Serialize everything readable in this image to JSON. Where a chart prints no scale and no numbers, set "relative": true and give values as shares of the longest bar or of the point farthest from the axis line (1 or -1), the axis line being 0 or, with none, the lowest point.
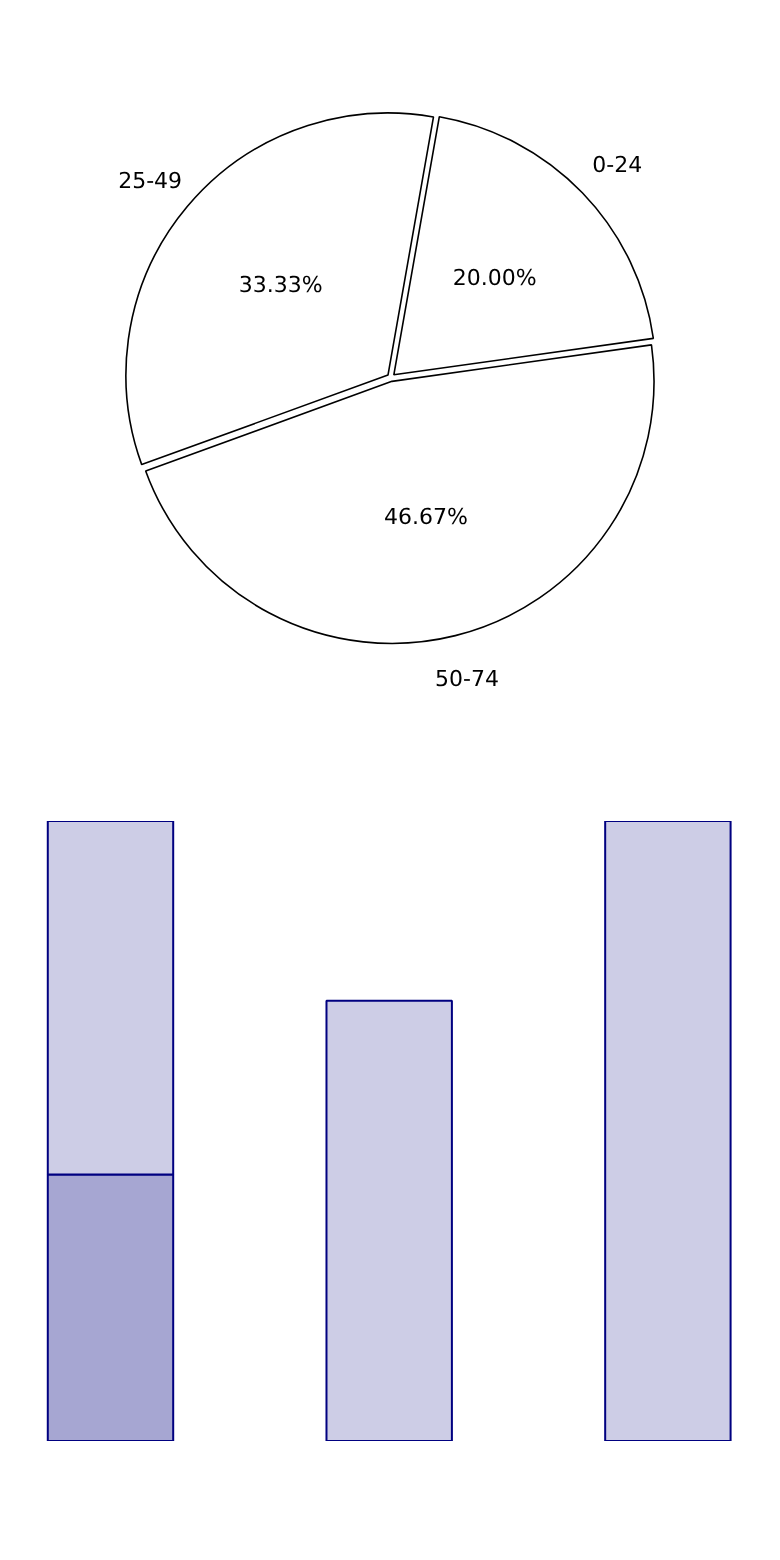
{
  "chart_data": [
    {
      "type": "pie",
      "categories": [
        "0-24",
        "50-74",
        "25-49"
      ],
      "values": [
        20,
        46.67,
        33.33
      ],
      "colors": [
        "#ffffff",
        "#ffffff",
        "#ffffff"
      ],
      "value_labels": [
        "20.00%",
        "46.67%",
        "33.33%"
      ]
    },
    {
      "type": "bar",
      "relative": true,
      "stacked": true,
      "categories": [
        null,
        null,
        null
      ],
      "series": [
        {
          "color": "#a6a6d2",
          "values": [
            0.43,
            0,
            0
          ]
        },
        {
          "color": "#cdcde6",
          "values": [
            0.57,
            0.71,
            1
          ]
        }
      ]
    }
  ]
}
